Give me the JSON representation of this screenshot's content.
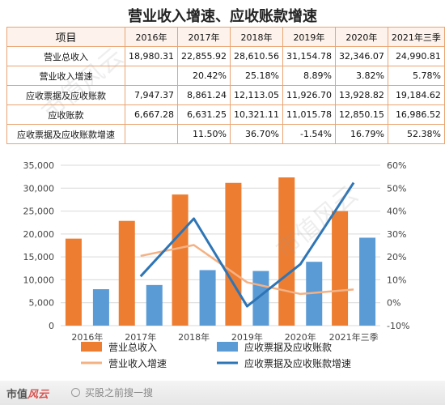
{
  "title": "营业收入增速、应收账款增速",
  "table": {
    "header": [
      "项目",
      "2016年",
      "2017年",
      "2018年",
      "2019年",
      "2020年",
      "2021年三季"
    ],
    "rows": [
      {
        "label": "营业总收入",
        "cells": [
          "18,980.31",
          "22,855.92",
          "28,610.56",
          "31,154.78",
          "32,346.07",
          "24,990.81"
        ]
      },
      {
        "label": "营业收入增速",
        "cells": [
          "",
          "20.42%",
          "25.18%",
          "8.89%",
          "3.82%",
          "5.78%"
        ]
      },
      {
        "label": "应收票据及应收账款",
        "cells": [
          "7,947.37",
          "8,861.24",
          "12,113.05",
          "11,926.70",
          "13,928.82",
          "19,184.62"
        ]
      },
      {
        "label": "应收账款",
        "cells": [
          "6,667.28",
          "6,631.25",
          "10,321.11",
          "11,015.78",
          "12,850.15",
          "16,986.52"
        ]
      },
      {
        "label": "应收票据及应收账款增速",
        "cells": [
          "",
          "11.50%",
          "36.70%",
          "-1.54%",
          "16.79%",
          "52.38%"
        ]
      }
    ]
  },
  "chart_data": {
    "type": "bar",
    "categories": [
      "2016年",
      "2017年",
      "2018年",
      "2019年",
      "2020年",
      "2021年三季"
    ],
    "series": [
      {
        "name": "营业总收入",
        "type": "bar",
        "axis": "left",
        "color": "#ed7d31",
        "values": [
          18980.31,
          22855.92,
          28610.56,
          31154.78,
          32346.07,
          24990.81
        ]
      },
      {
        "name": "应收票据及应收账款",
        "type": "bar",
        "axis": "left",
        "color": "#5b9bd5",
        "values": [
          7947.37,
          8861.24,
          12113.05,
          11926.7,
          13928.82,
          19184.62
        ]
      },
      {
        "name": "营业收入增速",
        "type": "line",
        "axis": "right",
        "color": "#f4b183",
        "values": [
          null,
          20.42,
          25.18,
          8.89,
          3.82,
          5.78
        ]
      },
      {
        "name": "应收票据及应收账款增速",
        "type": "line",
        "axis": "right",
        "color": "#2e75b6",
        "values": [
          null,
          11.5,
          36.7,
          -1.54,
          16.79,
          52.38
        ]
      }
    ],
    "y_left": {
      "min": 0,
      "max": 35000,
      "ticks": [
        "0",
        "5,000",
        "10,000",
        "15,000",
        "20,000",
        "25,000",
        "30,000",
        "35,000"
      ]
    },
    "y_right": {
      "min": -10,
      "max": 60,
      "ticks": [
        "-10%",
        "0%",
        "10%",
        "20%",
        "30%",
        "40%",
        "50%",
        "60%"
      ]
    },
    "legend_position": "bottom"
  },
  "footer": {
    "logo_main": "市值",
    "logo_accent": "风云",
    "search_placeholder": "买股之前搜一搜"
  },
  "watermark_text": "市值风云"
}
